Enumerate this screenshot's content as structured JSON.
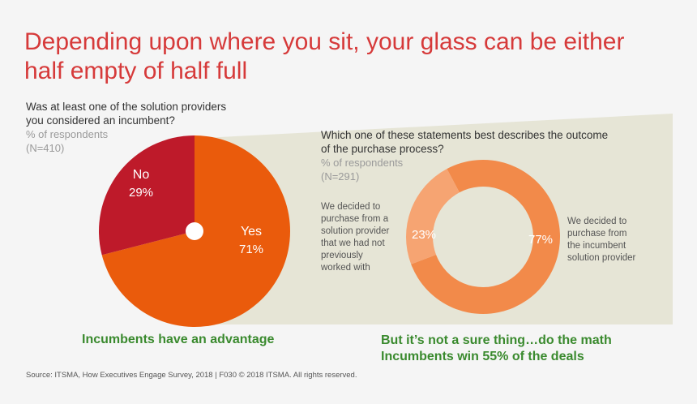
{
  "title_line1": "Depending upon where you sit, your glass can be either",
  "title_line2": "half empty of half full",
  "chart_data": [
    {
      "type": "pie",
      "title": "Was at least one of the solution providers you considered an incumbent?",
      "title_line1": "Was at least one of the solution providers",
      "title_line2": "you considered an incumbent?",
      "subtitle": "% of respondents",
      "sample": "(N=410)",
      "categories": [
        "Yes",
        "No"
      ],
      "values": [
        71,
        29
      ],
      "value_labels": [
        "71%",
        "29%"
      ],
      "colors": [
        "#ea5b0c",
        "#be1a2a"
      ],
      "conclusion": "Incumbents have an advantage"
    },
    {
      "type": "pie",
      "title": "Which one of these statements best describes the outcome of the purchase process?",
      "title_line1": "Which one of these statements best describes the outcome",
      "title_line2": "of the purchase process?",
      "subtitle": "% of respondents",
      "sample": "(N=291)",
      "categories": [
        "We decided to purchase from the incumbent solution provider",
        "We decided to purchase from a solution provider that we had not previously worked with"
      ],
      "values": [
        77,
        23
      ],
      "value_labels": [
        "77%",
        "23%"
      ],
      "colors": [
        "#f28a4a",
        "#f6a472"
      ],
      "left_label_lines": [
        "We decided to",
        "purchase from a",
        "solution provider",
        "that we had not",
        "previously",
        "worked with"
      ],
      "right_label_lines": [
        "We decided to",
        "purchase from",
        "the incumbent",
        "solution provider"
      ],
      "conclusion_line1": "But it’s not a sure thing…do the math",
      "conclusion_line2": "Incumbents win 55% of the deals"
    }
  ],
  "source": "Source: ITSMA, How Executives Engage Survey, 2018 |  F030 © 2018 ITSMA. All rights reserved.",
  "colors": {
    "title": "#d63a3a",
    "highlight_band": "#e6e5d6",
    "conclusion": "#3a8a2e"
  }
}
